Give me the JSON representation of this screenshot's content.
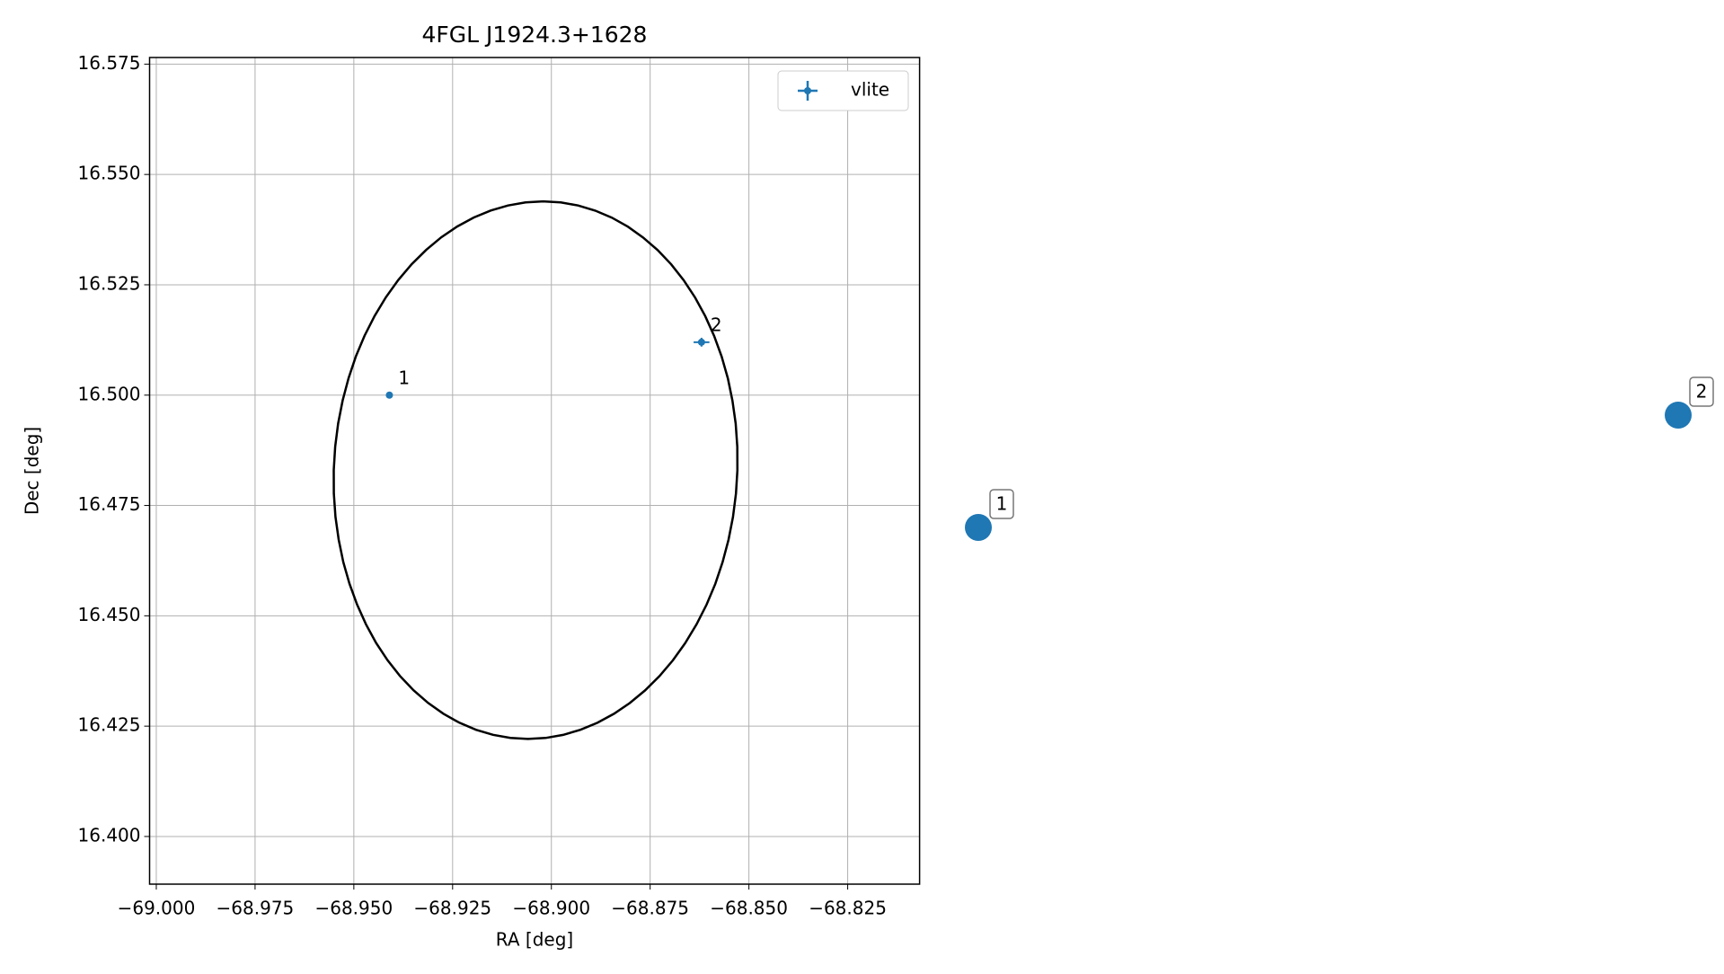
{
  "chart_data": [
    {
      "type": "scatter",
      "title": "4FGL J1924.3+1628",
      "x_label": "RA [deg]",
      "y_label": "Dec [deg]",
      "xlim": [
        -69.0017,
        -68.8068
      ],
      "ylim": [
        16.3892,
        16.5765
      ],
      "xticks": [
        {
          "value": -69.0,
          "label": "−69.000"
        },
        {
          "value": -68.975,
          "label": "−68.975"
        },
        {
          "value": -68.95,
          "label": "−68.950"
        },
        {
          "value": -68.925,
          "label": "−68.925"
        },
        {
          "value": -68.9,
          "label": "−68.900"
        },
        {
          "value": -68.875,
          "label": "−68.875"
        },
        {
          "value": -68.85,
          "label": "−68.850"
        },
        {
          "value": -68.825,
          "label": "−68.825"
        }
      ],
      "yticks": [
        {
          "value": 16.4,
          "label": "16.400"
        },
        16.425,
        {
          "value": 16.45,
          "label": "16.450"
        },
        16.475,
        {
          "value": 16.5,
          "label": "16.500"
        },
        16.525,
        {
          "value": 16.55,
          "label": "16.550"
        },
        16.575
      ],
      "grid": true,
      "legend": "upper right",
      "series": [
        {
          "name": "vlite",
          "color": "#1f77b4",
          "x": [
            -68.941,
            -68.862
          ],
          "values": [
            16.5,
            16.512
          ],
          "xerr": [
            null,
            0.002
          ],
          "yerr": [
            null,
            0.001
          ],
          "labels": [
            "1",
            "2"
          ]
        }
      ],
      "ellipse": {
        "x": -68.904,
        "y": 16.483,
        "a": 0.051,
        "b": 0.061,
        "angle": -6,
        "color": "#000000"
      }
    },
    {
      "type": "markers",
      "color": "#1f77b4",
      "labels": [
        "1",
        "2"
      ]
    }
  ]
}
